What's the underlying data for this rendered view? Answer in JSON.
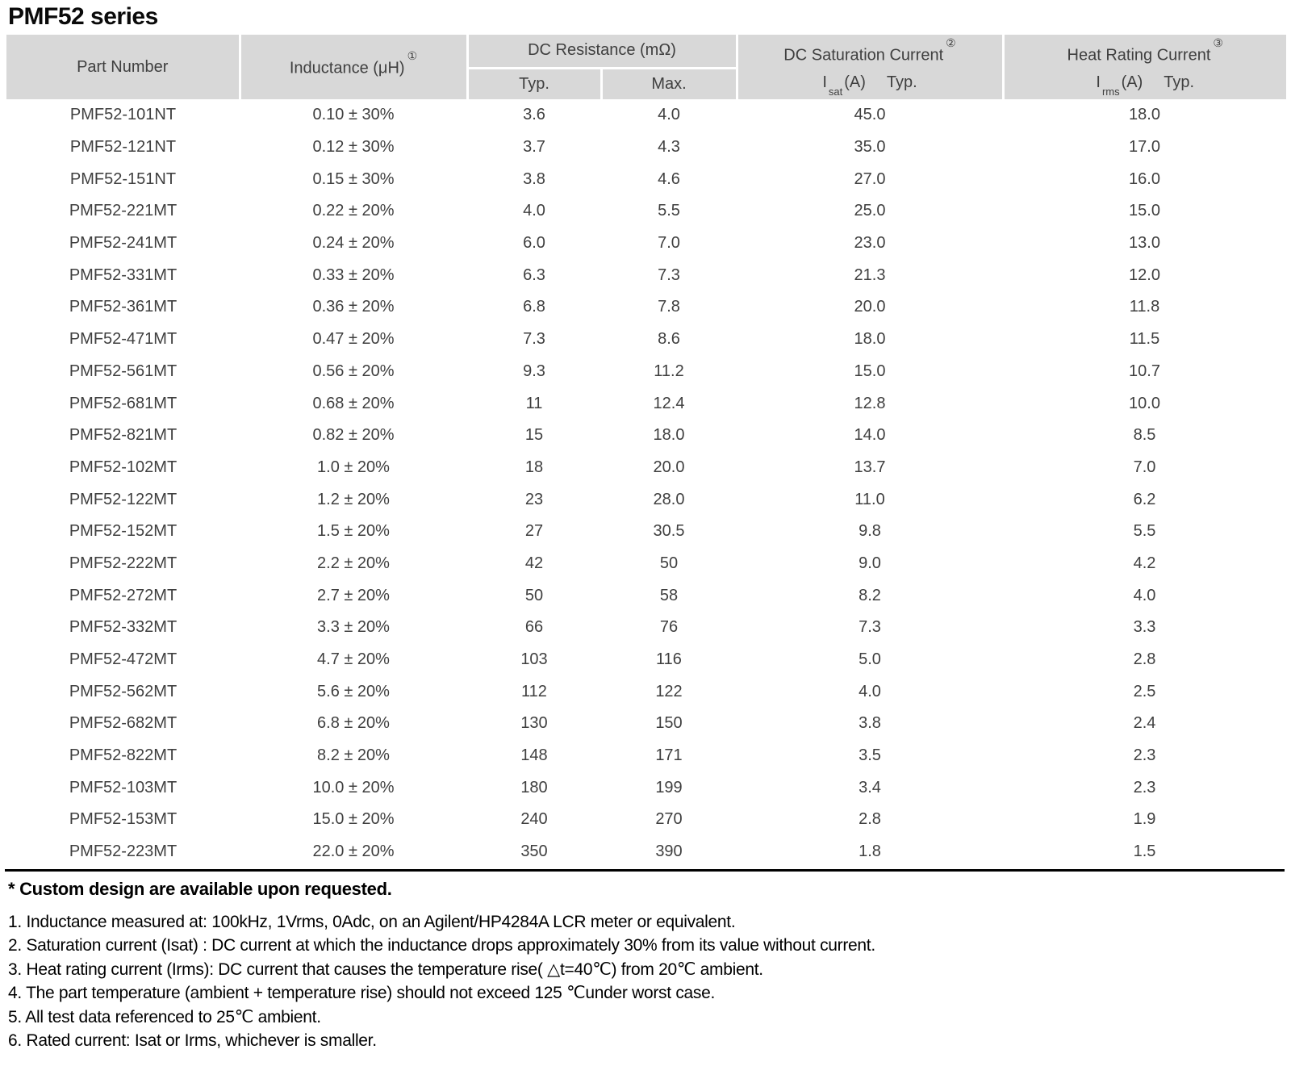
{
  "title": "PMF52 series",
  "colors": {
    "header_bg": "#d8d8d8",
    "table_text": "#3f3f3f",
    "note_text": "#000000",
    "rule": "#000000"
  },
  "table": {
    "headers": {
      "part_number": "Part Number",
      "inductance": "Inductance (μH)",
      "inductance_note": "①",
      "dc_resistance": "DC Resistance (mΩ)",
      "typ": "Typ.",
      "max": "Max.",
      "saturation_title": "DC Saturation Current",
      "saturation_note": "②",
      "saturation_symbol": "I",
      "saturation_symbol_sub": "sat",
      "saturation_unit": "(A)",
      "saturation_typ": "Typ.",
      "heat_title": "Heat Rating Current",
      "heat_note": "③",
      "heat_symbol": "I",
      "heat_symbol_sub": "rms",
      "heat_unit": "(A)",
      "heat_typ": "Typ."
    },
    "rows": [
      [
        "PMF52-101NT",
        "0.10 ± 30%",
        "3.6",
        "4.0",
        "45.0",
        "18.0"
      ],
      [
        "PMF52-121NT",
        "0.12 ± 30%",
        "3.7",
        "4.3",
        "35.0",
        "17.0"
      ],
      [
        "PMF52-151NT",
        "0.15 ± 30%",
        "3.8",
        "4.6",
        "27.0",
        "16.0"
      ],
      [
        "PMF52-221MT",
        "0.22 ± 20%",
        "4.0",
        "5.5",
        "25.0",
        "15.0"
      ],
      [
        "PMF52-241MT",
        "0.24 ± 20%",
        "6.0",
        "7.0",
        "23.0",
        "13.0"
      ],
      [
        "PMF52-331MT",
        "0.33 ± 20%",
        "6.3",
        "7.3",
        "21.3",
        "12.0"
      ],
      [
        "PMF52-361MT",
        "0.36 ± 20%",
        "6.8",
        "7.8",
        "20.0",
        "11.8"
      ],
      [
        "PMF52-471MT",
        "0.47 ± 20%",
        "7.3",
        "8.6",
        "18.0",
        "11.5"
      ],
      [
        "PMF52-561MT",
        "0.56 ± 20%",
        "9.3",
        "11.2",
        "15.0",
        "10.7"
      ],
      [
        "PMF52-681MT",
        "0.68 ± 20%",
        "11",
        "12.4",
        "12.8",
        "10.0"
      ],
      [
        "PMF52-821MT",
        "0.82 ± 20%",
        "15",
        "18.0",
        "14.0",
        "8.5"
      ],
      [
        "PMF52-102MT",
        "1.0 ± 20%",
        "18",
        "20.0",
        "13.7",
        "7.0"
      ],
      [
        "PMF52-122MT",
        "1.2 ± 20%",
        "23",
        "28.0",
        "11.0",
        "6.2"
      ],
      [
        "PMF52-152MT",
        "1.5 ± 20%",
        "27",
        "30.5",
        "9.8",
        "5.5"
      ],
      [
        "PMF52-222MT",
        "2.2 ± 20%",
        "42",
        "50",
        "9.0",
        "4.2"
      ],
      [
        "PMF52-272MT",
        "2.7 ± 20%",
        "50",
        "58",
        "8.2",
        "4.0"
      ],
      [
        "PMF52-332MT",
        "3.3 ± 20%",
        "66",
        "76",
        "7.3",
        "3.3"
      ],
      [
        "PMF52-472MT",
        "4.7 ± 20%",
        "103",
        "116",
        "5.0",
        "2.8"
      ],
      [
        "PMF52-562MT",
        "5.6 ± 20%",
        "112",
        "122",
        "4.0",
        "2.5"
      ],
      [
        "PMF52-682MT",
        "6.8 ± 20%",
        "130",
        "150",
        "3.8",
        "2.4"
      ],
      [
        "PMF52-822MT",
        "8.2 ± 20%",
        "148",
        "171",
        "3.5",
        "2.3"
      ],
      [
        "PMF52-103MT",
        "10.0 ± 20%",
        "180",
        "199",
        "3.4",
        "2.3"
      ],
      [
        "PMF52-153MT",
        "15.0 ± 20%",
        "240",
        "270",
        "2.8",
        "1.9"
      ],
      [
        "PMF52-223MT",
        "22.0 ± 20%",
        "350",
        "390",
        "1.8",
        "1.5"
      ]
    ]
  },
  "footer": {
    "custom_note": "* Custom design are available upon requested.",
    "notes": [
      "1. Inductance measured at: 100kHz, 1Vrms, 0Adc, on an Agilent/HP4284A LCR meter or equivalent.",
      "2. Saturation current (Isat) : DC current at which the inductance drops approximately 30% from its value without current.",
      "3. Heat rating current (Irms): DC current that causes the temperature rise( △t=40℃) from 20℃ ambient.",
      "4. The part temperature (ambient + temperature rise) should not exceed 125 ℃under worst case.",
      "5. All test data referenced to 25℃ ambient.",
      "6. Rated current: Isat or Irms, whichever is smaller."
    ]
  }
}
